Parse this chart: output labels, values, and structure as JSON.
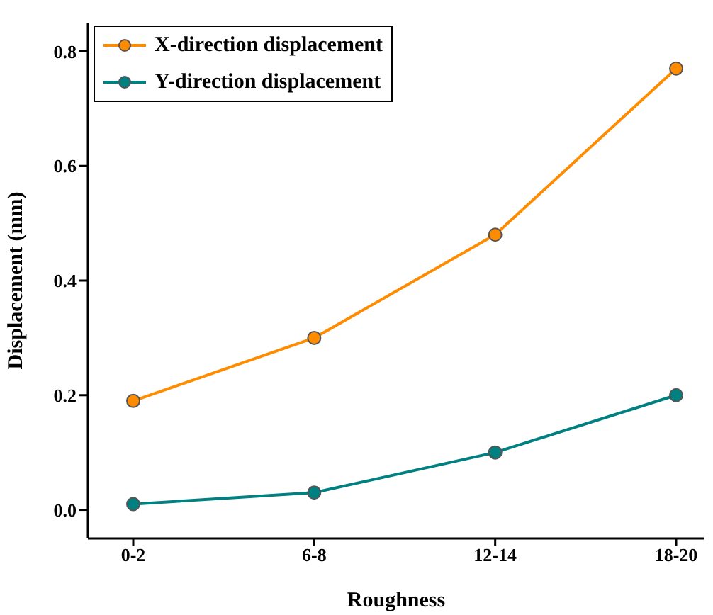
{
  "chart_data": {
    "type": "line",
    "xlabel": "Roughness",
    "ylabel": "Displacement (mm)",
    "categories": [
      "0-2",
      "6-8",
      "12-14",
      "18-20"
    ],
    "series": [
      {
        "name": "X-direction displacement",
        "color": "#ff8c00",
        "values": [
          0.19,
          0.3,
          0.48,
          0.77
        ]
      },
      {
        "name": "Y-direction displacement",
        "color": "#008080",
        "values": [
          0.01,
          0.03,
          0.1,
          0.2
        ]
      }
    ],
    "ylim": [
      -0.05,
      0.85
    ],
    "yticks": [
      {
        "value": 0,
        "label": "0.0"
      },
      0.2,
      0.4,
      0.6,
      0.8
    ],
    "legend": "top left",
    "marker": "circle",
    "line_style": "solid"
  }
}
